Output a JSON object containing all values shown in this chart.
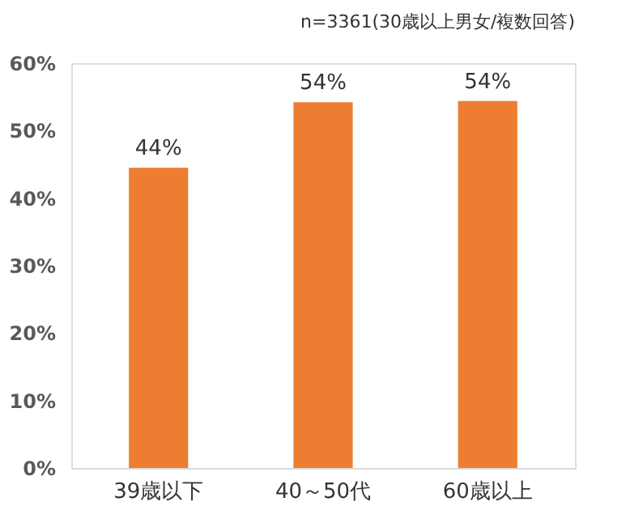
{
  "chart_data": {
    "type": "bar",
    "categories": [
      "39歳以下",
      "40～50代",
      "60歳以上"
    ],
    "values": [
      44.5,
      54.2,
      54.4
    ],
    "color": "#ed7d31",
    "value_labels": [
      "44%",
      "54%",
      "54%"
    ],
    "ylim": [
      0,
      60
    ],
    "yticks": [
      {
        "value": 0,
        "label": "0%"
      },
      {
        "value": 10,
        "label": "10%"
      },
      {
        "value": 20,
        "label": "20%"
      },
      {
        "value": 30,
        "label": "30%"
      },
      {
        "value": 40,
        "label": "40%"
      },
      {
        "value": 50,
        "label": "50%"
      },
      {
        "value": 60,
        "label": "60%"
      }
    ],
    "annotations": [
      "n=3361(30歳以上男女/複数回答)"
    ],
    "grid": false
  }
}
